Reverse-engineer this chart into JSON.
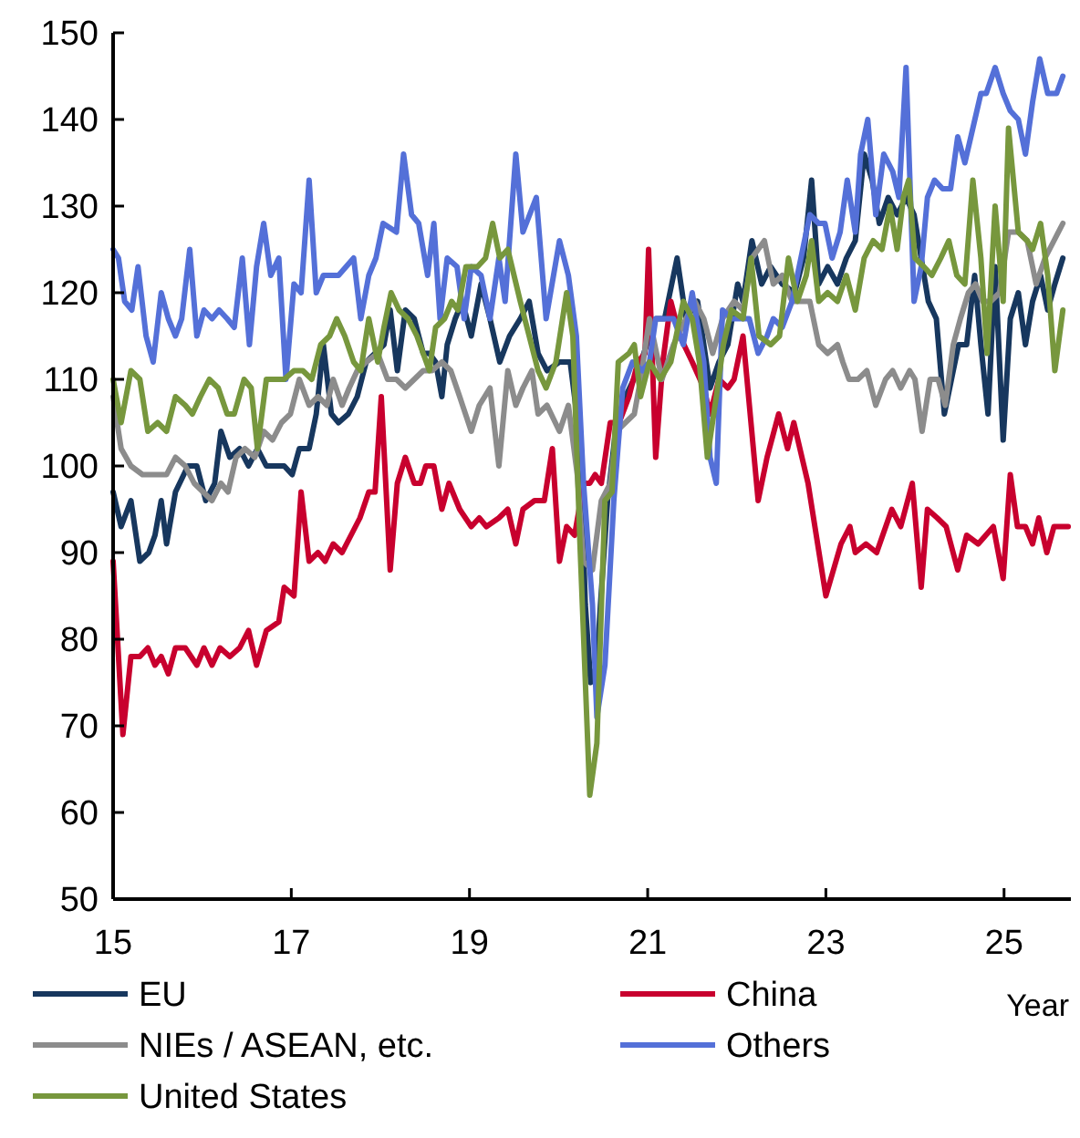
{
  "chart_data": {
    "type": "line",
    "xlabel": "Year",
    "xlim": [
      15,
      25.75
    ],
    "xticks": [
      15,
      17,
      19,
      21,
      23,
      25
    ],
    "ylim": [
      50,
      150
    ],
    "yticks": [
      50,
      60,
      70,
      80,
      90,
      100,
      110,
      120,
      130,
      140,
      150
    ],
    "grid": false,
    "legend": "bottom",
    "marker": "none",
    "line_style": "solid",
    "series": [
      {
        "name": "EU",
        "color": "#17375e",
        "x": [
          15.0,
          15.09,
          15.2,
          15.3,
          15.4,
          15.47,
          15.54,
          15.6,
          15.7,
          15.84,
          15.94,
          16.04,
          16.14,
          16.21,
          16.31,
          16.42,
          16.52,
          16.62,
          16.72,
          16.82,
          16.92,
          17.01,
          17.09,
          17.2,
          17.28,
          17.36,
          17.45,
          17.53,
          17.64,
          17.74,
          17.84,
          17.94,
          18.04,
          18.11,
          18.19,
          18.28,
          18.38,
          18.48,
          18.55,
          18.62,
          18.69,
          18.75,
          18.84,
          18.92,
          19.02,
          19.13,
          19.23,
          19.34,
          19.45,
          19.57,
          19.67,
          19.77,
          19.87,
          20.01,
          20.13,
          20.24,
          20.3,
          20.36,
          20.43,
          20.47,
          20.55,
          20.65,
          20.75,
          20.89,
          20.99,
          21.09,
          21.19,
          21.33,
          21.43,
          21.56,
          21.7,
          21.8,
          21.9,
          22.01,
          22.07,
          22.17,
          22.28,
          22.38,
          22.51,
          22.65,
          22.75,
          22.84,
          22.92,
          23.02,
          23.13,
          23.23,
          23.33,
          23.43,
          23.52,
          23.6,
          23.7,
          23.8,
          23.9,
          23.99,
          24.07,
          24.15,
          24.24,
          24.33,
          24.41,
          24.49,
          24.58,
          24.67,
          24.74,
          24.82,
          24.9,
          24.99,
          25.07,
          25.16,
          25.24,
          25.32,
          25.41,
          25.49,
          25.57,
          25.66
        ],
        "values": [
          97,
          93,
          96,
          89,
          90,
          92,
          96,
          91,
          97,
          100,
          100,
          96,
          98,
          104,
          101,
          102,
          100,
          102,
          100,
          100,
          100,
          99,
          102,
          102,
          106,
          114,
          106,
          105,
          106,
          108,
          112,
          113,
          114,
          118,
          111,
          118,
          117,
          113,
          113,
          112,
          108,
          114,
          117,
          119,
          115,
          121,
          117,
          112,
          115,
          117,
          119,
          113,
          111,
          112,
          112,
          103,
          84,
          75,
          77,
          84,
          96,
          105,
          108,
          111,
          114,
          117,
          117,
          124,
          117,
          119,
          109,
          112,
          114,
          121,
          119,
          126,
          121,
          123,
          121,
          120,
          124,
          133,
          121,
          123,
          121,
          124,
          126,
          136,
          133,
          128,
          131,
          129,
          131,
          129,
          124,
          119,
          117,
          106,
          110,
          114,
          114,
          122,
          114,
          106,
          123,
          103,
          117,
          120,
          114,
          119,
          122,
          118,
          121,
          124
        ]
      },
      {
        "name": "China",
        "color": "#c8002e",
        "x": [
          15.0,
          15.11,
          15.2,
          15.3,
          15.39,
          15.47,
          15.54,
          15.62,
          15.7,
          15.81,
          15.94,
          16.02,
          16.11,
          16.2,
          16.31,
          16.42,
          16.52,
          16.61,
          16.72,
          16.86,
          16.92,
          17.03,
          17.11,
          17.2,
          17.3,
          17.38,
          17.47,
          17.57,
          17.67,
          17.77,
          17.87,
          17.94,
          18.01,
          18.11,
          18.19,
          18.28,
          18.38,
          18.45,
          18.51,
          18.6,
          18.69,
          18.77,
          18.89,
          19.02,
          19.11,
          19.19,
          19.33,
          19.43,
          19.52,
          19.6,
          19.73,
          19.84,
          19.93,
          20.01,
          20.09,
          20.18,
          20.28,
          20.35,
          20.41,
          20.48,
          20.58,
          20.68,
          20.79,
          20.89,
          20.97,
          21.01,
          21.09,
          21.17,
          21.26,
          21.36,
          21.5,
          21.63,
          21.7,
          21.8,
          21.9,
          21.97,
          22.07,
          22.24,
          22.34,
          22.47,
          22.57,
          22.64,
          22.8,
          23.0,
          23.17,
          23.27,
          23.33,
          23.45,
          23.57,
          23.74,
          23.84,
          23.97,
          24.07,
          24.14,
          24.25,
          24.35,
          24.48,
          24.58,
          24.71,
          24.88,
          24.99,
          25.07,
          25.15,
          25.24,
          25.32,
          25.39,
          25.48,
          25.56,
          25.66,
          25.72
        ],
        "values": [
          89,
          69,
          78,
          78,
          79,
          77,
          78,
          76,
          79,
          79,
          77,
          79,
          77,
          79,
          78,
          79,
          81,
          77,
          81,
          82,
          86,
          85,
          97,
          89,
          90,
          89,
          91,
          90,
          92,
          94,
          97,
          97,
          108,
          88,
          98,
          101,
          98,
          98,
          100,
          100,
          95,
          98,
          95,
          93,
          94,
          93,
          94,
          95,
          91,
          95,
          96,
          96,
          102,
          89,
          93,
          92,
          98,
          98,
          99,
          98,
          105,
          105,
          108,
          112,
          113,
          125,
          101,
          112,
          119,
          115,
          112,
          109,
          106,
          110,
          109,
          110,
          115,
          96,
          101,
          106,
          102,
          105,
          98,
          85,
          91,
          93,
          90,
          91,
          90,
          95,
          93,
          98,
          86,
          95,
          94,
          93,
          88,
          92,
          91,
          93,
          87,
          99,
          93,
          93,
          91,
          94,
          90,
          93,
          93,
          93
        ]
      },
      {
        "name": "NIEs / ASEAN, etc.",
        "color": "#8c8c8c",
        "x": [
          15.0,
          15.09,
          15.2,
          15.33,
          15.47,
          15.6,
          15.7,
          15.81,
          15.91,
          16.01,
          16.11,
          16.21,
          16.29,
          16.38,
          16.48,
          16.59,
          16.69,
          16.79,
          16.89,
          16.99,
          17.09,
          17.2,
          17.3,
          17.4,
          17.47,
          17.57,
          17.65,
          17.74,
          17.84,
          17.97,
          18.08,
          18.18,
          18.28,
          18.38,
          18.48,
          18.58,
          18.69,
          18.79,
          18.89,
          19.02,
          19.11,
          19.23,
          19.33,
          19.43,
          19.52,
          19.6,
          19.7,
          19.77,
          19.87,
          20.01,
          20.11,
          20.21,
          20.28,
          20.38,
          20.48,
          20.58,
          20.65,
          20.75,
          20.85,
          20.92,
          21.02,
          21.16,
          21.29,
          21.43,
          21.53,
          21.63,
          21.73,
          21.84,
          21.97,
          22.07,
          22.17,
          22.31,
          22.41,
          22.51,
          22.62,
          22.72,
          22.82,
          22.92,
          23.02,
          23.13,
          23.19,
          23.26,
          23.36,
          23.46,
          23.56,
          23.67,
          23.75,
          23.84,
          23.94,
          24.0,
          24.08,
          24.17,
          24.26,
          24.34,
          24.43,
          24.51,
          24.6,
          24.68,
          24.76,
          24.85,
          24.95,
          25.05,
          25.16,
          25.26,
          25.36,
          25.46,
          25.56,
          25.66
        ],
        "values": [
          108,
          102,
          100,
          99,
          99,
          99,
          101,
          100,
          98,
          97,
          96,
          98,
          97,
          101,
          102,
          101,
          104,
          103,
          105,
          106,
          110,
          107,
          108,
          107,
          110,
          107,
          109,
          111,
          112,
          113,
          110,
          110,
          109,
          110,
          111,
          111,
          112,
          111,
          108,
          104,
          107,
          109,
          100,
          111,
          107,
          109,
          111,
          106,
          107,
          104,
          107,
          99,
          89,
          88,
          96,
          98,
          104,
          105,
          106,
          110,
          117,
          110,
          114,
          117,
          119,
          117,
          113,
          117,
          119,
          118,
          124,
          126,
          121,
          122,
          119,
          119,
          119,
          114,
          113,
          114,
          112,
          110,
          110,
          111,
          107,
          110,
          111,
          109,
          111,
          110,
          104,
          110,
          110,
          107,
          114,
          117,
          120,
          121,
          119,
          119,
          120,
          127,
          127,
          126,
          121,
          124,
          126,
          128
        ]
      },
      {
        "name": "Others",
        "color": "#5470d8",
        "x": [
          15.0,
          15.06,
          15.13,
          15.21,
          15.28,
          15.37,
          15.45,
          15.54,
          15.62,
          15.7,
          15.77,
          15.86,
          15.94,
          16.02,
          16.11,
          16.19,
          16.28,
          16.36,
          16.45,
          16.53,
          16.61,
          16.69,
          16.77,
          16.86,
          16.94,
          17.03,
          17.11,
          17.2,
          17.28,
          17.36,
          17.53,
          17.7,
          17.78,
          17.87,
          17.95,
          18.03,
          18.18,
          18.26,
          18.35,
          18.43,
          18.53,
          18.6,
          18.67,
          18.75,
          18.86,
          18.94,
          19.02,
          19.13,
          19.23,
          19.33,
          19.4,
          19.52,
          19.6,
          19.75,
          19.86,
          20.01,
          20.11,
          20.2,
          20.28,
          20.38,
          20.43,
          20.52,
          20.62,
          20.72,
          20.83,
          20.94,
          21.02,
          21.09,
          21.19,
          21.29,
          21.4,
          21.5,
          21.63,
          21.7,
          21.77,
          21.84,
          21.94,
          22.04,
          22.14,
          22.24,
          22.34,
          22.41,
          22.51,
          22.62,
          22.72,
          22.82,
          22.92,
          22.99,
          23.07,
          23.16,
          23.24,
          23.33,
          23.39,
          23.47,
          23.56,
          23.65,
          23.75,
          23.82,
          23.9,
          23.99,
          24.07,
          24.14,
          24.22,
          24.31,
          24.4,
          24.48,
          24.56,
          24.65,
          24.74,
          24.8,
          24.9,
          24.99,
          25.07,
          25.16,
          25.24,
          25.32,
          25.4,
          25.49,
          25.59,
          25.66
        ],
        "values": [
          125,
          124,
          119,
          118,
          123,
          115,
          112,
          120,
          117,
          115,
          117,
          125,
          115,
          118,
          117,
          118,
          117,
          116,
          124,
          114,
          123,
          128,
          122,
          124,
          110,
          121,
          120,
          133,
          120,
          122,
          122,
          124,
          117,
          122,
          124,
          128,
          127,
          136,
          129,
          128,
          122,
          128,
          117,
          124,
          123,
          117,
          123,
          122,
          117,
          124,
          119,
          136,
          127,
          131,
          117,
          126,
          122,
          115,
          98,
          84,
          71,
          77,
          96,
          109,
          112,
          111,
          112,
          117,
          117,
          117,
          114,
          120,
          112,
          101,
          98,
          118,
          117,
          117,
          117,
          113,
          115,
          117,
          116,
          119,
          124,
          129,
          128,
          128,
          124,
          127,
          133,
          127,
          136,
          140,
          129,
          136,
          134,
          131,
          146,
          119,
          123,
          131,
          133,
          132,
          132,
          138,
          135,
          139,
          143,
          143,
          146,
          143,
          141,
          140,
          136,
          142,
          147,
          143,
          143,
          145
        ]
      },
      {
        "name": "United States",
        "color": "#77973d",
        "x": [
          15.0,
          15.09,
          15.2,
          15.3,
          15.39,
          15.5,
          15.6,
          15.7,
          15.81,
          15.89,
          15.98,
          16.08,
          16.18,
          16.28,
          16.36,
          16.47,
          16.55,
          16.62,
          16.72,
          16.82,
          16.92,
          17.03,
          17.13,
          17.23,
          17.33,
          17.43,
          17.51,
          17.6,
          17.7,
          17.78,
          17.87,
          17.97,
          18.04,
          18.12,
          18.21,
          18.31,
          18.41,
          18.55,
          18.62,
          18.72,
          18.8,
          18.87,
          18.96,
          19.09,
          19.18,
          19.26,
          19.34,
          19.43,
          19.57,
          19.67,
          19.77,
          19.86,
          19.97,
          20.09,
          20.16,
          20.24,
          20.35,
          20.43,
          20.52,
          20.6,
          20.67,
          20.79,
          20.85,
          20.92,
          21.02,
          21.14,
          21.26,
          21.4,
          21.5,
          21.58,
          21.67,
          21.77,
          21.85,
          21.94,
          22.07,
          22.16,
          22.25,
          22.38,
          22.48,
          22.58,
          22.68,
          22.78,
          22.84,
          22.92,
          23.02,
          23.13,
          23.23,
          23.33,
          23.43,
          23.53,
          23.63,
          23.72,
          23.8,
          23.87,
          23.93,
          24.0,
          24.1,
          24.19,
          24.29,
          24.38,
          24.47,
          24.56,
          24.65,
          24.74,
          24.81,
          24.9,
          24.99,
          25.05,
          25.16,
          25.26,
          25.32,
          25.41,
          25.49,
          25.57,
          25.66
        ],
        "values": [
          110,
          105,
          111,
          110,
          104,
          105,
          104,
          108,
          107,
          106,
          108,
          110,
          109,
          106,
          106,
          110,
          109,
          102,
          110,
          110,
          110,
          111,
          111,
          110,
          114,
          115,
          117,
          115,
          112,
          111,
          117,
          112,
          116,
          120,
          118,
          117,
          115,
          111,
          116,
          117,
          119,
          118,
          123,
          123,
          124,
          128,
          124,
          125,
          119,
          115,
          111,
          109,
          112,
          120,
          115,
          91,
          62,
          68,
          96,
          97,
          112,
          113,
          114,
          108,
          112,
          110,
          112,
          119,
          117,
          112,
          101,
          108,
          114,
          118,
          117,
          124,
          115,
          114,
          115,
          124,
          119,
          122,
          126,
          119,
          120,
          119,
          122,
          118,
          124,
          126,
          125,
          130,
          125,
          131,
          133,
          124,
          123,
          122,
          124,
          126,
          122,
          121,
          133,
          124,
          113,
          130,
          119,
          139,
          127,
          126,
          125,
          128,
          122,
          111,
          118
        ]
      }
    ]
  }
}
